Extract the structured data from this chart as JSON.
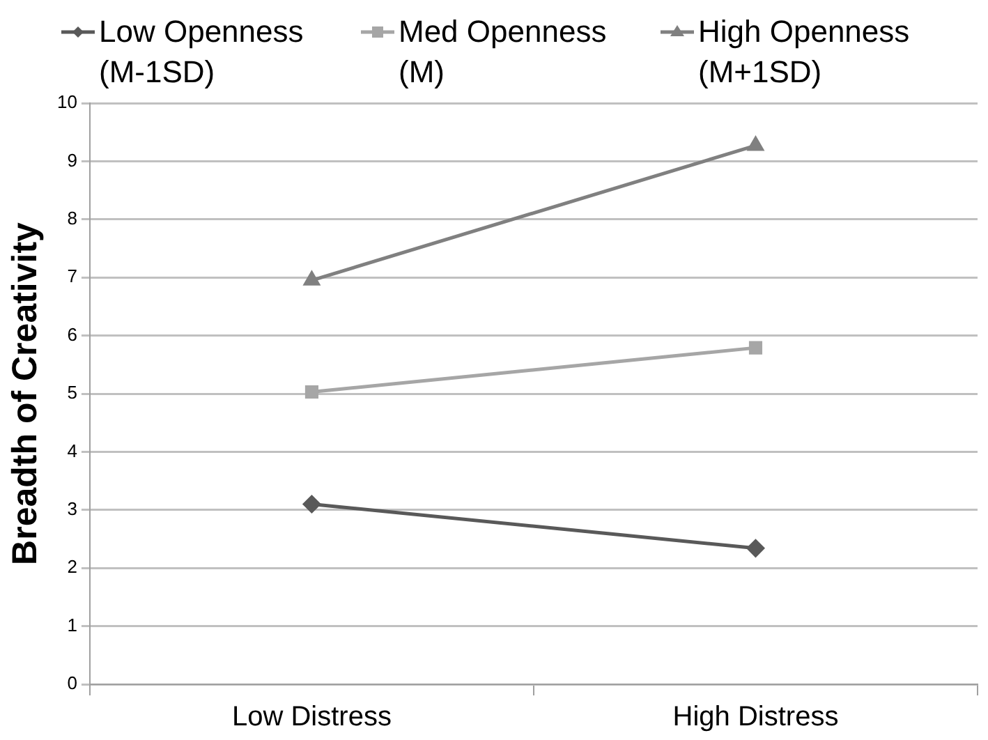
{
  "chart_data": {
    "type": "line",
    "ylabel": "Breadth of Creativity",
    "categories": [
      "Low Distress",
      "High Distress"
    ],
    "series": [
      {
        "name": "Low Openness (M-1SD)",
        "color": "#595959",
        "marker": "diamond",
        "values": [
          3.1,
          2.34
        ]
      },
      {
        "name": "Med Openness (M)",
        "color": "#a6a6a6",
        "marker": "square",
        "values": [
          5.03,
          5.79
        ]
      },
      {
        "name": "High Openness (M+1SD)",
        "color": "#808080",
        "marker": "triangle",
        "values": [
          6.95,
          9.27
        ]
      }
    ],
    "ylim": [
      0,
      10
    ],
    "yticks": [
      0,
      1,
      2,
      3,
      4,
      5,
      6,
      7,
      8,
      9,
      10
    ],
    "grid": "y",
    "legend": "top"
  }
}
